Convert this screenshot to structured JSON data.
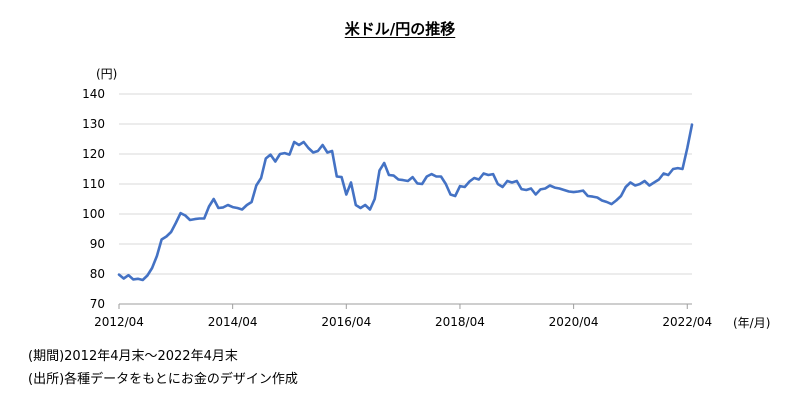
{
  "chart_data": {
    "type": "line",
    "title": "米ドル/円の推移",
    "ylabel": "(円)",
    "xlabel": "(年/月)",
    "ylim": [
      70,
      140
    ],
    "yticks": [
      70,
      80,
      90,
      100,
      110,
      120,
      130,
      140
    ],
    "xticks": [
      "2012/04",
      "2014/04",
      "2016/04",
      "2018/04",
      "2020/04",
      "2022/04"
    ],
    "grid": true,
    "series": [
      {
        "color": "#4472c4",
        "values": [
          79.8,
          78.5,
          79.6,
          78.2,
          78.4,
          78.0,
          79.5,
          82.0,
          86.0,
          91.5,
          92.5,
          94.0,
          97.0,
          100.3,
          99.5,
          98.0,
          98.3,
          98.5,
          98.5,
          102.5,
          105.0,
          102.0,
          102.2,
          103.0,
          102.3,
          102.0,
          101.5,
          103.0,
          104.0,
          109.5,
          112.0,
          118.5,
          119.8,
          117.5,
          120.0,
          120.3,
          119.8,
          124.0,
          123.0,
          124.0,
          122.0,
          120.5,
          121.0,
          123.0,
          120.5,
          121.0,
          112.5,
          112.3,
          106.5,
          110.5,
          103.0,
          102.0,
          103.0,
          101.5,
          105.0,
          114.5,
          117.0,
          113.0,
          112.8,
          111.5,
          111.3,
          111.0,
          112.3,
          110.2,
          110.0,
          112.5,
          113.3,
          112.5,
          112.5,
          110.0,
          106.5,
          106.0,
          109.3,
          109.0,
          110.8,
          112.0,
          111.5,
          113.5,
          113.0,
          113.3,
          110.0,
          109.0,
          111.0,
          110.5,
          111.0,
          108.3,
          108.0,
          108.5,
          106.5,
          108.2,
          108.5,
          109.5,
          108.8,
          108.5,
          108.0,
          107.5,
          107.3,
          107.5,
          107.8,
          106.0,
          105.8,
          105.5,
          104.5,
          104.0,
          103.3,
          104.5,
          106.0,
          109.0,
          110.5,
          109.5,
          110.0,
          111.0,
          109.5,
          110.5,
          111.5,
          113.5,
          113.0,
          115.0,
          115.3,
          115.0,
          122.0,
          129.8
        ]
      }
    ]
  },
  "notes": {
    "period": "(期間)2012年4月末〜2022年4月末",
    "source": "(出所)各種データをもとにお金のデザイン作成"
  }
}
